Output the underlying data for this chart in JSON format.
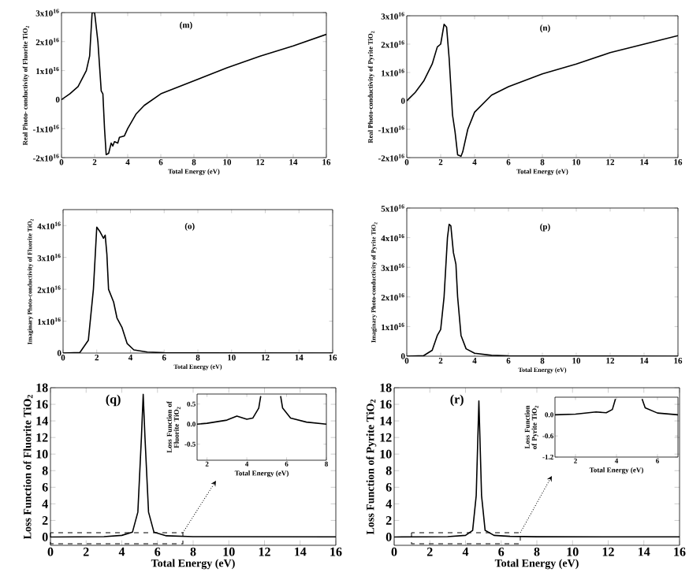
{
  "chart_data": [
    {
      "type": "line",
      "xlabel": "Total Energy (eV)",
      "ylabel": "Real Photo- conductivity of Fluorite TiO$_{2}$",
      "annotations": [
        "(m)"
      ],
      "color": "#000000",
      "line_style": "solid",
      "xlim": [
        0,
        16
      ],
      "ylim": [
        -2e+16,
        3e+16
      ],
      "xticks": [
        0,
        2,
        4,
        6,
        8,
        10,
        12,
        14,
        16
      ],
      "yticks": [
        {
          "value": -2e+16,
          "label": "-2x10$^{16}$"
        },
        {
          "value": -1e+16,
          "label": "-1x10$^{16}$"
        },
        0,
        {
          "value": 1e+16,
          "label": "1x10$^{16}$"
        },
        {
          "value": 2e+16,
          "label": "2x10$^{16}$"
        },
        {
          "value": 3e+16,
          "label": "3x10$^{16}$"
        }
      ],
      "x": [
        0,
        0.5,
        1,
        1.5,
        1.7,
        1.85,
        2.0,
        2.2,
        2.4,
        2.5,
        2.6,
        2.7,
        2.85,
        3.0,
        3.1,
        3.2,
        3.4,
        3.5,
        3.8,
        4.0,
        4.5,
        5,
        6,
        8,
        10,
        12,
        14,
        16
      ],
      "values": [
        0,
        2000000000000000.0,
        4500000000000000.0,
        1e+16,
        1.5e+16,
        3e+16,
        3e+16,
        2e+16,
        3000000000000000.0,
        2000000000000000.0,
        -1e+16,
        -1.9e+16,
        -1.85e+16,
        -1.5e+16,
        -1.6e+16,
        -1.45e+16,
        -1.5e+16,
        -1.3e+16,
        -1.25e+16,
        -1e+16,
        -5000000000000000.0,
        -2000000000000000.0,
        2000000000000000.0,
        6500000000000000.0,
        1.1e+16,
        1.5e+16,
        1.85e+16,
        2.25e+16
      ]
    },
    {
      "type": "line",
      "xlabel": "Total Energy (eV)",
      "ylabel": "Real Photo-conductivity of Pyrite TiO$_{2}$",
      "annotations": [
        "(n)"
      ],
      "color": "#000000",
      "line_style": "solid",
      "xlim": [
        0,
        16
      ],
      "ylim": [
        -2e+16,
        3e+16
      ],
      "xticks": [
        0,
        2,
        4,
        6,
        8,
        10,
        12,
        14,
        16
      ],
      "yticks": [
        {
          "value": -2e+16,
          "label": "-2x10$^{16}$"
        },
        {
          "value": -1e+16,
          "label": "-1x10$^{16}$"
        },
        0,
        {
          "value": 1e+16,
          "label": "1x10$^{16}$"
        },
        {
          "value": 2e+16,
          "label": "2x10$^{16}$"
        },
        {
          "value": 3e+16,
          "label": "3x10$^{16}$"
        }
      ],
      "x": [
        0,
        0.5,
        1,
        1.5,
        1.8,
        2.0,
        2.2,
        2.35,
        2.5,
        2.7,
        2.85,
        3.0,
        3.2,
        3.3,
        3.6,
        4,
        5,
        6,
        8,
        10,
        12,
        14,
        16
      ],
      "values": [
        0,
        3000000000000000.0,
        7000000000000000.0,
        1.3e+16,
        1.9e+16,
        2e+16,
        2.7e+16,
        2.6e+16,
        1.5e+16,
        -5000000000000000.0,
        -1.1e+16,
        -1.9e+16,
        -1.95e+16,
        -1.8e+16,
        -1e+16,
        -4000000000000000.0,
        2000000000000000.0,
        5000000000000000.0,
        9500000000000000.0,
        1.3e+16,
        1.7e+16,
        2e+16,
        2.3e+16
      ]
    },
    {
      "type": "line",
      "xlabel": "Total Energy (eV)",
      "ylabel": "Imaginary Photo-conductivity of Fluorite TiO$_{2}$",
      "annotations": [
        "(o)"
      ],
      "color": "#000000",
      "line_style": "solid",
      "xlim": [
        0,
        16
      ],
      "ylim": [
        0,
        4.5e+16
      ],
      "xticks": [
        0,
        2,
        4,
        6,
        8,
        10,
        12,
        14,
        16
      ],
      "yticks": [
        0,
        {
          "value": 1e+16,
          "label": "1x10$^{16}$"
        },
        {
          "value": 2e+16,
          "label": "2x10$^{16}$"
        },
        {
          "value": 3e+16,
          "label": "3x10$^{16}$"
        },
        {
          "value": 4e+16,
          "label": "4x10$^{16}$"
        }
      ],
      "x": [
        0,
        1,
        1.5,
        1.8,
        2.0,
        2.2,
        2.4,
        2.5,
        2.6,
        2.7,
        3.0,
        3.2,
        3.5,
        3.8,
        4.2,
        5,
        6,
        16
      ],
      "values": [
        0,
        200000000000000.0,
        4000000000000000.0,
        2e+16,
        3.95e+16,
        3.8e+16,
        3.6e+16,
        3.7e+16,
        3.1e+16,
        2e+16,
        1.6e+16,
        1.1e+16,
        8000000000000000.0,
        3000000000000000.0,
        1000000000000000.0,
        300000000000000.0,
        100000000000000.0,
        0
      ]
    },
    {
      "type": "line",
      "xlabel": "Total Energy (eV)",
      "ylabel": "Imaginary Photo-conductivity of Pyrite TiO$_{2}$",
      "annotations": [
        "(p)"
      ],
      "color": "#000000",
      "line_style": "solid",
      "xlim": [
        0,
        16
      ],
      "ylim": [
        0,
        5e+16
      ],
      "xticks": [
        0,
        2,
        4,
        6,
        8,
        10,
        12,
        14,
        16
      ],
      "yticks": [
        0,
        {
          "value": 1e+16,
          "label": "1x10$^{16}$"
        },
        {
          "value": 2e+16,
          "label": "2x10$^{16}$"
        },
        {
          "value": 3e+16,
          "label": "3x10$^{16}$"
        },
        {
          "value": 4e+16,
          "label": "4x10$^{16}$"
        },
        {
          "value": 5e+16,
          "label": "5x10$^{16}$"
        }
      ],
      "x": [
        0,
        1,
        1.5,
        1.8,
        2.0,
        2.2,
        2.4,
        2.5,
        2.6,
        2.75,
        2.9,
        3.0,
        3.2,
        3.5,
        4,
        5,
        6,
        16
      ],
      "values": [
        0,
        200000000000000.0,
        2000000000000000.0,
        7000000000000000.0,
        9000000000000000.0,
        2e+16,
        4e+16,
        4.45e+16,
        4.4e+16,
        3.5e+16,
        3.1e+16,
        2e+16,
        7000000000000000.0,
        2500000000000000.0,
        1000000000000000.0,
        300000000000000.0,
        100000000000000.0,
        0
      ]
    },
    {
      "type": "line",
      "xlabel": "Total Energy (eV)",
      "ylabel": "Loss Function of Fluorite TiO$_{2}$",
      "annotations": [
        "(q)"
      ],
      "color": "#000000",
      "line_style": "solid",
      "xlim": [
        0,
        16
      ],
      "ylim": [
        -1,
        18
      ],
      "xticks": [
        0,
        2,
        4,
        6,
        8,
        10,
        12,
        14,
        16
      ],
      "yticks": [
        0,
        2,
        4,
        6,
        8,
        10,
        12,
        14,
        16,
        18
      ],
      "x": [
        0,
        3,
        4,
        4.6,
        4.9,
        5.1,
        5.2,
        5.3,
        5.5,
        5.8,
        6.5,
        8,
        16
      ],
      "values": [
        0,
        0.05,
        0.2,
        0.6,
        3,
        12,
        17.2,
        12,
        3,
        0.6,
        0.15,
        0.05,
        0.02
      ]
    },
    {
      "type": "line",
      "xlabel": "Total Energy (eV)",
      "ylabel": "Loss Function of Pyrite TiO$_{2}$",
      "annotations": [
        "(r)"
      ],
      "color": "#000000",
      "line_style": "solid",
      "xlim": [
        0,
        16
      ],
      "ylim": [
        -1,
        18
      ],
      "xticks": [
        0,
        2,
        4,
        6,
        8,
        10,
        12,
        14,
        16
      ],
      "yticks": [
        0,
        2,
        4,
        6,
        8,
        10,
        12,
        14,
        16,
        18
      ],
      "x": [
        0,
        3,
        4,
        4.4,
        4.6,
        4.75,
        4.9,
        5.1,
        5.6,
        6.5,
        8,
        16
      ],
      "values": [
        0,
        0.05,
        0.2,
        0.8,
        5,
        16.4,
        5,
        0.8,
        0.2,
        0.08,
        0.03,
        0.02
      ]
    },
    {
      "type": "line",
      "xlabel": "Total Energy (eV)",
      "ylabel": "Loss Function of Fluorite TiO$_{2}$",
      "color": "#000000",
      "line_style": "solid",
      "xlim": [
        1.5,
        8
      ],
      "ylim": [
        -0.9,
        0.75
      ],
      "xticks": [
        2,
        4,
        6,
        8
      ],
      "yticks": [
        {
          "value": -0.5,
          "label": "-0.5"
        },
        {
          "value": 0,
          "label": "0.0"
        },
        {
          "value": 0.5,
          "label": "0.5"
        }
      ],
      "x": [
        1.5,
        2,
        3,
        3.5,
        4,
        4.3,
        4.6,
        4.7,
        5.1,
        5.7,
        5.8,
        6.2,
        7,
        8
      ],
      "values": [
        0,
        0.02,
        0.1,
        0.2,
        0.12,
        0.15,
        0.4,
        0.7,
        null,
        0.7,
        0.4,
        0.15,
        0.05,
        0
      ]
    },
    {
      "type": "line",
      "xlabel": "Total Energy (eV)",
      "ylabel": "Loss Function of Pyrite TiO$_{2}$",
      "color": "#000000",
      "line_style": "solid",
      "xlim": [
        1,
        7
      ],
      "ylim": [
        -1.2,
        0.5
      ],
      "xticks": [
        2,
        4,
        6
      ],
      "yticks": [
        {
          "value": -1.2,
          "label": "-1.2"
        },
        {
          "value": -0.6,
          "label": "-0.6"
        },
        {
          "value": 0,
          "label": "0.0"
        }
      ],
      "x": [
        1,
        2,
        3,
        3.5,
        3.8,
        3.95,
        4.6,
        5.25,
        5.4,
        6,
        7
      ],
      "values": [
        0,
        0.02,
        0.08,
        0.06,
        0.15,
        0.45,
        null,
        0.45,
        0.2,
        0.05,
        0
      ]
    }
  ]
}
